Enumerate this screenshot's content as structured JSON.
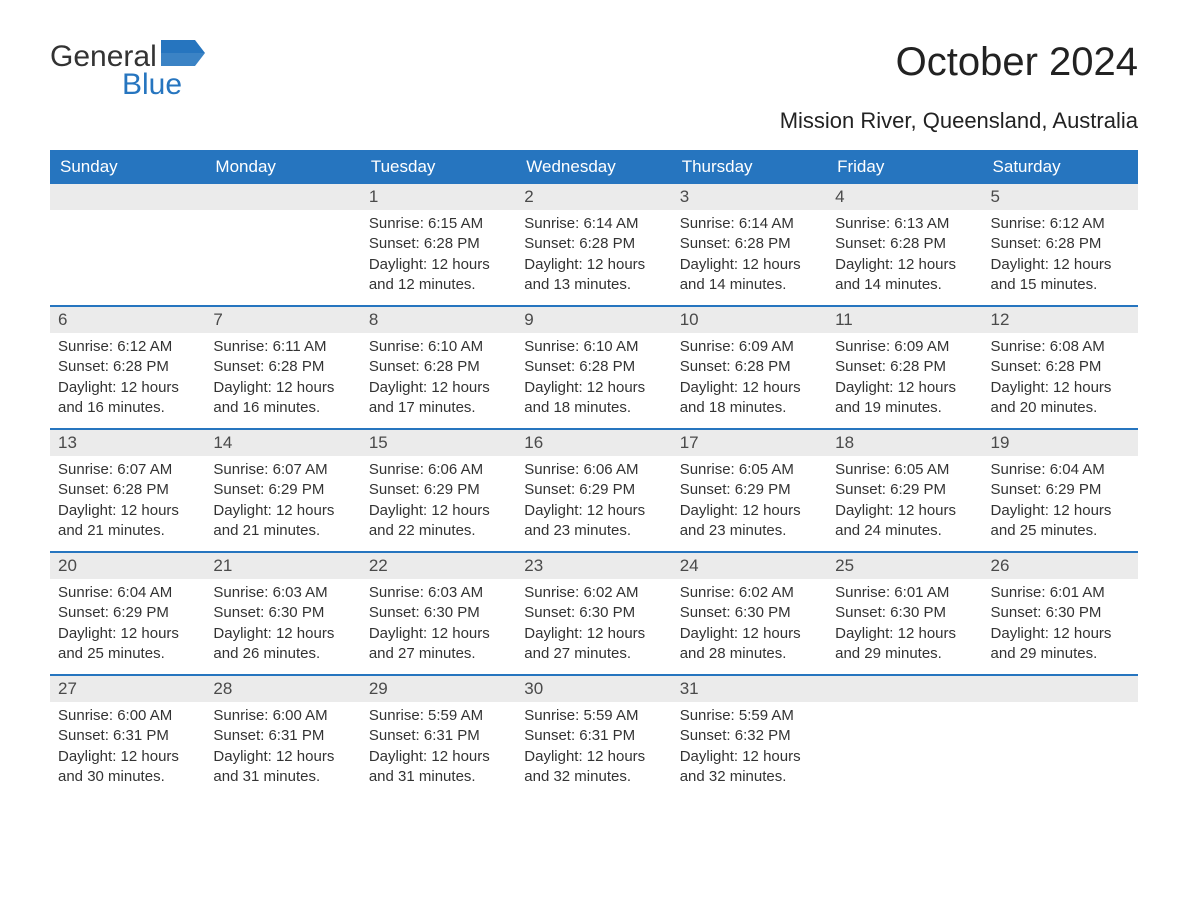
{
  "logo": {
    "part1": "General",
    "part2": "Blue",
    "flag_color": "#2675bf"
  },
  "title": "October 2024",
  "subtitle": "Mission River, Queensland, Australia",
  "colors": {
    "header_bg": "#2675bf",
    "daynum_bg": "#ebebeb",
    "text": "#333333",
    "white": "#ffffff"
  },
  "day_names": [
    "Sunday",
    "Monday",
    "Tuesday",
    "Wednesday",
    "Thursday",
    "Friday",
    "Saturday"
  ],
  "weeks": [
    [
      null,
      null,
      {
        "n": "1",
        "sunrise": "Sunrise: 6:15 AM",
        "sunset": "Sunset: 6:28 PM",
        "dl1": "Daylight: 12 hours",
        "dl2": "and 12 minutes."
      },
      {
        "n": "2",
        "sunrise": "Sunrise: 6:14 AM",
        "sunset": "Sunset: 6:28 PM",
        "dl1": "Daylight: 12 hours",
        "dl2": "and 13 minutes."
      },
      {
        "n": "3",
        "sunrise": "Sunrise: 6:14 AM",
        "sunset": "Sunset: 6:28 PM",
        "dl1": "Daylight: 12 hours",
        "dl2": "and 14 minutes."
      },
      {
        "n": "4",
        "sunrise": "Sunrise: 6:13 AM",
        "sunset": "Sunset: 6:28 PM",
        "dl1": "Daylight: 12 hours",
        "dl2": "and 14 minutes."
      },
      {
        "n": "5",
        "sunrise": "Sunrise: 6:12 AM",
        "sunset": "Sunset: 6:28 PM",
        "dl1": "Daylight: 12 hours",
        "dl2": "and 15 minutes."
      }
    ],
    [
      {
        "n": "6",
        "sunrise": "Sunrise: 6:12 AM",
        "sunset": "Sunset: 6:28 PM",
        "dl1": "Daylight: 12 hours",
        "dl2": "and 16 minutes."
      },
      {
        "n": "7",
        "sunrise": "Sunrise: 6:11 AM",
        "sunset": "Sunset: 6:28 PM",
        "dl1": "Daylight: 12 hours",
        "dl2": "and 16 minutes."
      },
      {
        "n": "8",
        "sunrise": "Sunrise: 6:10 AM",
        "sunset": "Sunset: 6:28 PM",
        "dl1": "Daylight: 12 hours",
        "dl2": "and 17 minutes."
      },
      {
        "n": "9",
        "sunrise": "Sunrise: 6:10 AM",
        "sunset": "Sunset: 6:28 PM",
        "dl1": "Daylight: 12 hours",
        "dl2": "and 18 minutes."
      },
      {
        "n": "10",
        "sunrise": "Sunrise: 6:09 AM",
        "sunset": "Sunset: 6:28 PM",
        "dl1": "Daylight: 12 hours",
        "dl2": "and 18 minutes."
      },
      {
        "n": "11",
        "sunrise": "Sunrise: 6:09 AM",
        "sunset": "Sunset: 6:28 PM",
        "dl1": "Daylight: 12 hours",
        "dl2": "and 19 minutes."
      },
      {
        "n": "12",
        "sunrise": "Sunrise: 6:08 AM",
        "sunset": "Sunset: 6:28 PM",
        "dl1": "Daylight: 12 hours",
        "dl2": "and 20 minutes."
      }
    ],
    [
      {
        "n": "13",
        "sunrise": "Sunrise: 6:07 AM",
        "sunset": "Sunset: 6:28 PM",
        "dl1": "Daylight: 12 hours",
        "dl2": "and 21 minutes."
      },
      {
        "n": "14",
        "sunrise": "Sunrise: 6:07 AM",
        "sunset": "Sunset: 6:29 PM",
        "dl1": "Daylight: 12 hours",
        "dl2": "and 21 minutes."
      },
      {
        "n": "15",
        "sunrise": "Sunrise: 6:06 AM",
        "sunset": "Sunset: 6:29 PM",
        "dl1": "Daylight: 12 hours",
        "dl2": "and 22 minutes."
      },
      {
        "n": "16",
        "sunrise": "Sunrise: 6:06 AM",
        "sunset": "Sunset: 6:29 PM",
        "dl1": "Daylight: 12 hours",
        "dl2": "and 23 minutes."
      },
      {
        "n": "17",
        "sunrise": "Sunrise: 6:05 AM",
        "sunset": "Sunset: 6:29 PM",
        "dl1": "Daylight: 12 hours",
        "dl2": "and 23 minutes."
      },
      {
        "n": "18",
        "sunrise": "Sunrise: 6:05 AM",
        "sunset": "Sunset: 6:29 PM",
        "dl1": "Daylight: 12 hours",
        "dl2": "and 24 minutes."
      },
      {
        "n": "19",
        "sunrise": "Sunrise: 6:04 AM",
        "sunset": "Sunset: 6:29 PM",
        "dl1": "Daylight: 12 hours",
        "dl2": "and 25 minutes."
      }
    ],
    [
      {
        "n": "20",
        "sunrise": "Sunrise: 6:04 AM",
        "sunset": "Sunset: 6:29 PM",
        "dl1": "Daylight: 12 hours",
        "dl2": "and 25 minutes."
      },
      {
        "n": "21",
        "sunrise": "Sunrise: 6:03 AM",
        "sunset": "Sunset: 6:30 PM",
        "dl1": "Daylight: 12 hours",
        "dl2": "and 26 minutes."
      },
      {
        "n": "22",
        "sunrise": "Sunrise: 6:03 AM",
        "sunset": "Sunset: 6:30 PM",
        "dl1": "Daylight: 12 hours",
        "dl2": "and 27 minutes."
      },
      {
        "n": "23",
        "sunrise": "Sunrise: 6:02 AM",
        "sunset": "Sunset: 6:30 PM",
        "dl1": "Daylight: 12 hours",
        "dl2": "and 27 minutes."
      },
      {
        "n": "24",
        "sunrise": "Sunrise: 6:02 AM",
        "sunset": "Sunset: 6:30 PM",
        "dl1": "Daylight: 12 hours",
        "dl2": "and 28 minutes."
      },
      {
        "n": "25",
        "sunrise": "Sunrise: 6:01 AM",
        "sunset": "Sunset: 6:30 PM",
        "dl1": "Daylight: 12 hours",
        "dl2": "and 29 minutes."
      },
      {
        "n": "26",
        "sunrise": "Sunrise: 6:01 AM",
        "sunset": "Sunset: 6:30 PM",
        "dl1": "Daylight: 12 hours",
        "dl2": "and 29 minutes."
      }
    ],
    [
      {
        "n": "27",
        "sunrise": "Sunrise: 6:00 AM",
        "sunset": "Sunset: 6:31 PM",
        "dl1": "Daylight: 12 hours",
        "dl2": "and 30 minutes."
      },
      {
        "n": "28",
        "sunrise": "Sunrise: 6:00 AM",
        "sunset": "Sunset: 6:31 PM",
        "dl1": "Daylight: 12 hours",
        "dl2": "and 31 minutes."
      },
      {
        "n": "29",
        "sunrise": "Sunrise: 5:59 AM",
        "sunset": "Sunset: 6:31 PM",
        "dl1": "Daylight: 12 hours",
        "dl2": "and 31 minutes."
      },
      {
        "n": "30",
        "sunrise": "Sunrise: 5:59 AM",
        "sunset": "Sunset: 6:31 PM",
        "dl1": "Daylight: 12 hours",
        "dl2": "and 32 minutes."
      },
      {
        "n": "31",
        "sunrise": "Sunrise: 5:59 AM",
        "sunset": "Sunset: 6:32 PM",
        "dl1": "Daylight: 12 hours",
        "dl2": "and 32 minutes."
      },
      null,
      null
    ]
  ]
}
